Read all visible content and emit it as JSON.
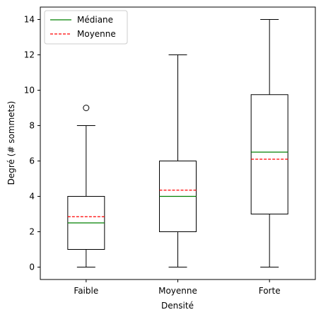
{
  "chart_data": {
    "type": "box",
    "xlabel": "Densité",
    "ylabel": "Degré (# sommets)",
    "categories": [
      "Faible",
      "Moyenne",
      "Forte"
    ],
    "ylim": [
      -0.7,
      14.7
    ],
    "yticks": [
      0,
      2,
      4,
      6,
      8,
      10,
      12,
      14
    ],
    "boxes": [
      {
        "category": "Faible",
        "whisker_low": 0,
        "q1": 1,
        "median": 2.5,
        "mean": 2.85,
        "q3": 4,
        "whisker_high": 8,
        "outliers": [
          9
        ]
      },
      {
        "category": "Moyenne",
        "whisker_low": 0,
        "q1": 2,
        "median": 4.0,
        "mean": 4.35,
        "q3": 6,
        "whisker_high": 12,
        "outliers": []
      },
      {
        "category": "Forte",
        "whisker_low": 0,
        "q1": 3,
        "median": 6.5,
        "mean": 6.1,
        "q3": 9.75,
        "whisker_high": 14,
        "outliers": []
      }
    ],
    "legend": {
      "position": "upper-left",
      "entries": [
        {
          "label": "Médiane",
          "color": "#008000",
          "style": "solid"
        },
        {
          "label": "Moyenne",
          "color": "#ff0000",
          "style": "dashed"
        }
      ]
    },
    "grid": false
  }
}
